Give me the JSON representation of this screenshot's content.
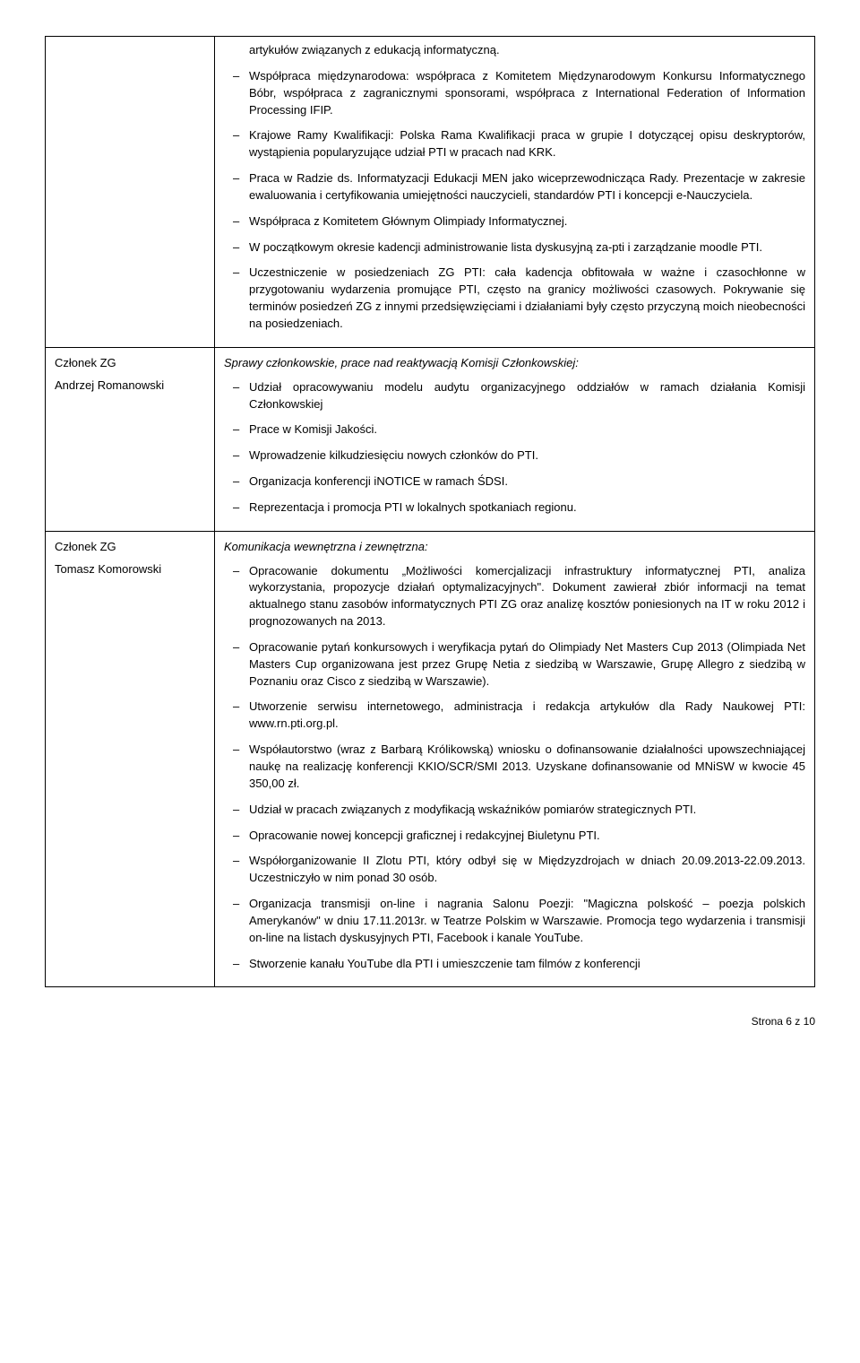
{
  "rows": [
    {
      "left_role": "",
      "left_name": "",
      "section_title": "",
      "bullets": [
        "artykułów związanych z edukacją informatyczną.",
        "Współpraca międzynarodowa: współpraca z Komitetem Międzynarodowym Konkursu Informatycznego Bóbr, współpraca z zagranicznymi sponsorami, współpraca z International Federation of Information Processing IFIP.",
        "Krajowe Ramy Kwalifikacji: Polska Rama Kwalifikacji praca w grupie I dotyczącej opisu deskryptorów, wystąpienia popularyzujące udział PTI w pracach nad KRK.",
        "Praca  w Radzie ds. Informatyzacji Edukacji MEN jako wiceprzewodnicząca Rady. Prezentacje w zakresie ewaluowania i certyfikowania umiejętności nauczycieli, standardów PTI i koncepcji e-Nauczyciela.",
        "Współpraca z Komitetem Głównym Olimpiady Informatycznej.",
        "W początkowym okresie kadencji administrowanie lista dyskusyjną za-pti i zarządzanie moodle PTI.",
        "Uczestniczenie w posiedzeniach ZG PTI: cała kadencja obfitowała w ważne i czasochłonne w przygotowaniu wydarzenia promujące PTI, często na granicy możliwości czasowych. Pokrywanie się terminów posiedzeń ZG z innymi przedsięwzięciami i działaniami były często przyczyną moich nieobecności na posiedzeniach."
      ]
    },
    {
      "left_role": "Członek ZG",
      "left_name": "Andrzej Romanowski",
      "section_title": "Sprawy członkowskie, prace nad reaktywacją Komisji Członkowskiej:",
      "bullets": [
        "Udział opracowywaniu modelu audytu organizacyjnego oddziałów w ramach działania Komisji Członkowskiej",
        "Prace w Komisji Jakości.",
        "Wprowadzenie kilkudziesięciu nowych członków do PTI.",
        "Organizacja konferencji iNOTICE w ramach ŚDSI.",
        "Reprezentacja i promocja PTI w lokalnych spotkaniach regionu."
      ]
    },
    {
      "left_role": "Członek ZG",
      "left_name": "Tomasz Komorowski",
      "section_title": "Komunikacja wewnętrzna i zewnętrzna:",
      "bullets": [
        "Opracowanie dokumentu „Możliwości komercjalizacji infrastruktury informatycznej PTI, analiza wykorzystania, propozycje działań optymalizacyjnych\". Dokument zawierał zbiór informacji na temat aktualnego stanu zasobów informatycznych PTI ZG oraz analizę kosztów poniesionych na IT w roku 2012 i prognozowanych na 2013.",
        "Opracowanie pytań konkursowych i weryfikacja pytań do Olimpiady Net Masters Cup 2013 (Olimpiada Net Masters Cup organizowana jest przez Grupę Netia z siedzibą w Warszawie, Grupę Allegro z siedzibą w Poznaniu oraz Cisco z siedzibą w Warszawie).",
        "Utworzenie serwisu internetowego, administracja i redakcja artykułów dla Rady Naukowej PTI: www.rn.pti.org.pl.",
        "Współautorstwo (wraz z Barbarą Królikowską) wniosku o dofinansowanie działalności upowszechniającej naukę na realizację konferencji KKIO/SCR/SMI 2013. Uzyskane dofinansowanie od MNiSW w kwocie 45 350,00 zł.",
        "Udział w pracach związanych z modyfikacją wskaźników pomiarów strategicznych PTI.",
        "Opracowanie nowej koncepcji graficznej i redakcyjnej Biuletynu PTI.",
        "Współorganizowanie II Zlotu PTI, który odbył się w Międzyzdrojach w dniach 20.09.2013-22.09.2013. Uczestniczyło w nim ponad 30 osób.",
        "Organizacja transmisji on-line i nagrania Salonu Poezji: \"Magiczna polskość – poezja polskich Amerykanów\" w dniu 17.11.2013r. w Teatrze Polskim w Warszawie. Promocja tego wydarzenia i transmisji on-line na listach dyskusyjnych PTI, Facebook i kanale YouTube.",
        "Stworzenie kanału YouTube dla PTI i umieszczenie tam filmów z konferencji"
      ]
    }
  ],
  "footer": "Strona 6 z 10"
}
